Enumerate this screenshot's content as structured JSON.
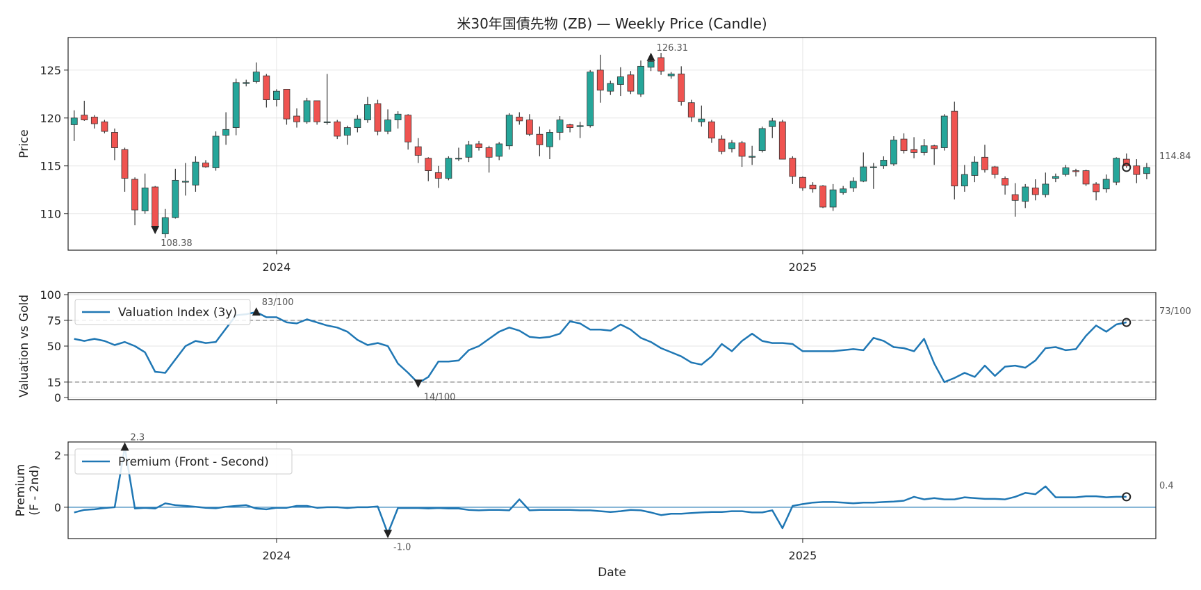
{
  "chart_data": [
    {
      "type": "candlestick",
      "title": "米30年国債先物 (ZB) — Weekly Price (Candle)",
      "ylabel": "Price",
      "ylim": [
        106.2,
        128.4
      ],
      "yticks": [
        110,
        115,
        120,
        125
      ],
      "xticks": [
        {
          "label": "2024",
          "week": 20
        },
        {
          "label": "2025",
          "week": 72
        }
      ],
      "grid": true,
      "up_color": "#26a69a",
      "down_color": "#ef5350",
      "ohlc": [
        [
          119.3,
          120.8,
          117.6,
          120.0
        ],
        [
          120.3,
          121.8,
          119.7,
          119.8
        ],
        [
          120.1,
          120.3,
          118.9,
          119.4
        ],
        [
          119.6,
          119.8,
          118.4,
          118.6
        ],
        [
          118.5,
          118.9,
          115.6,
          116.9
        ],
        [
          116.7,
          116.9,
          112.3,
          113.7
        ],
        [
          113.6,
          113.8,
          108.8,
          110.4
        ],
        [
          110.3,
          114.2,
          110.0,
          112.7
        ],
        [
          112.8,
          112.9,
          108.2,
          108.6
        ],
        [
          107.9,
          110.5,
          107.5,
          109.6
        ],
        [
          109.6,
          114.7,
          109.5,
          113.5
        ],
        [
          113.3,
          115.3,
          111.9,
          113.4
        ],
        [
          113.0,
          116.0,
          112.3,
          115.4
        ],
        [
          115.3,
          115.6,
          114.8,
          114.9
        ],
        [
          114.8,
          118.6,
          114.5,
          118.1
        ],
        [
          118.2,
          120.6,
          117.2,
          118.8
        ],
        [
          119.0,
          124.1,
          118.2,
          123.7
        ],
        [
          123.6,
          124.0,
          123.3,
          123.7
        ],
        [
          123.8,
          125.8,
          123.6,
          124.8
        ],
        [
          124.4,
          124.6,
          121.1,
          121.9
        ],
        [
          121.9,
          123.0,
          121.2,
          122.8
        ],
        [
          123.0,
          123.0,
          119.3,
          119.9
        ],
        [
          120.2,
          121.0,
          119.0,
          119.6
        ],
        [
          119.6,
          122.1,
          119.4,
          121.8
        ],
        [
          121.8,
          121.8,
          119.3,
          119.6
        ],
        [
          119.6,
          124.6,
          119.3,
          119.6
        ],
        [
          119.6,
          119.8,
          117.8,
          118.1
        ],
        [
          118.2,
          119.2,
          117.2,
          119.0
        ],
        [
          119.0,
          120.3,
          118.5,
          119.9
        ],
        [
          119.8,
          122.2,
          119.5,
          121.4
        ],
        [
          121.5,
          121.9,
          118.2,
          118.6
        ],
        [
          118.6,
          120.9,
          118.3,
          119.8
        ],
        [
          119.8,
          120.7,
          118.9,
          120.4
        ],
        [
          120.3,
          120.4,
          116.7,
          117.5
        ],
        [
          117.0,
          117.9,
          115.3,
          116.1
        ],
        [
          115.8,
          115.9,
          113.4,
          114.5
        ],
        [
          114.3,
          115.0,
          112.7,
          113.7
        ],
        [
          113.7,
          116.0,
          113.5,
          115.8
        ],
        [
          115.8,
          116.9,
          115.5,
          115.8
        ],
        [
          115.9,
          117.6,
          115.4,
          117.2
        ],
        [
          117.3,
          117.6,
          116.6,
          116.9
        ],
        [
          116.9,
          117.1,
          114.3,
          115.9
        ],
        [
          116.0,
          117.5,
          115.6,
          117.3
        ],
        [
          117.1,
          120.5,
          116.7,
          120.3
        ],
        [
          120.1,
          120.6,
          119.3,
          119.7
        ],
        [
          119.8,
          120.4,
          118.1,
          118.3
        ],
        [
          118.3,
          119.1,
          116.0,
          117.2
        ],
        [
          117.0,
          118.8,
          115.7,
          118.5
        ],
        [
          118.5,
          120.2,
          117.7,
          119.8
        ],
        [
          119.3,
          119.4,
          118.5,
          119.0
        ],
        [
          119.1,
          119.6,
          117.9,
          119.2
        ],
        [
          119.2,
          125.0,
          119.0,
          124.8
        ],
        [
          125.0,
          126.6,
          121.6,
          122.9
        ],
        [
          122.8,
          123.9,
          122.4,
          123.6
        ],
        [
          123.5,
          125.3,
          122.3,
          124.3
        ],
        [
          124.5,
          124.9,
          122.5,
          122.8
        ],
        [
          122.5,
          126.0,
          122.2,
          125.4
        ],
        [
          125.3,
          126.6,
          124.9,
          125.9
        ],
        [
          126.3,
          126.8,
          124.5,
          124.9
        ],
        [
          124.4,
          124.8,
          124.1,
          124.6
        ],
        [
          124.6,
          125.4,
          121.3,
          121.7
        ],
        [
          121.6,
          121.9,
          119.6,
          120.1
        ],
        [
          119.6,
          121.3,
          119.1,
          119.9
        ],
        [
          119.6,
          119.8,
          117.4,
          117.9
        ],
        [
          117.8,
          118.2,
          116.2,
          116.5
        ],
        [
          116.8,
          117.7,
          116.4,
          117.4
        ],
        [
          117.4,
          117.6,
          114.9,
          116.0
        ],
        [
          115.9,
          117.1,
          115.1,
          116.0
        ],
        [
          116.6,
          119.1,
          116.4,
          118.9
        ],
        [
          119.1,
          120.0,
          117.9,
          119.7
        ],
        [
          119.6,
          119.8,
          115.7,
          115.7
        ],
        [
          115.8,
          116.0,
          113.1,
          113.9
        ],
        [
          113.8,
          113.9,
          112.4,
          112.7
        ],
        [
          113.0,
          113.3,
          112.2,
          112.6
        ],
        [
          112.9,
          113.0,
          110.6,
          110.7
        ],
        [
          110.7,
          113.1,
          110.3,
          112.5
        ],
        [
          112.2,
          112.9,
          112.0,
          112.6
        ],
        [
          112.7,
          113.8,
          112.3,
          113.4
        ],
        [
          113.4,
          116.4,
          113.3,
          114.9
        ],
        [
          114.9,
          115.3,
          112.6,
          114.9
        ],
        [
          115.0,
          116.0,
          114.7,
          115.6
        ],
        [
          115.2,
          118.1,
          115.0,
          117.7
        ],
        [
          117.8,
          118.4,
          116.3,
          116.6
        ],
        [
          116.7,
          118.0,
          115.8,
          116.4
        ],
        [
          116.4,
          117.8,
          116.1,
          117.1
        ],
        [
          117.1,
          117.2,
          115.1,
          116.8
        ],
        [
          116.9,
          120.4,
          116.6,
          120.2
        ],
        [
          120.7,
          121.7,
          111.5,
          112.9
        ],
        [
          112.9,
          115.1,
          112.3,
          114.1
        ],
        [
          114.0,
          116.0,
          113.3,
          115.4
        ],
        [
          115.9,
          117.2,
          114.3,
          114.6
        ],
        [
          114.9,
          115.0,
          113.7,
          114.1
        ],
        [
          113.7,
          113.9,
          112.0,
          113.0
        ],
        [
          112.0,
          113.2,
          109.7,
          111.4
        ],
        [
          111.3,
          113.1,
          110.6,
          112.8
        ],
        [
          112.7,
          113.6,
          111.4,
          112.0
        ],
        [
          112.0,
          114.3,
          111.7,
          113.1
        ],
        [
          113.7,
          114.2,
          113.3,
          113.9
        ],
        [
          114.1,
          115.1,
          113.9,
          114.8
        ],
        [
          114.5,
          114.7,
          113.9,
          114.4
        ],
        [
          114.5,
          114.6,
          112.9,
          113.1
        ],
        [
          113.1,
          113.3,
          111.4,
          112.3
        ],
        [
          112.6,
          114.1,
          112.2,
          113.6
        ],
        [
          113.3,
          115.9,
          113.0,
          115.8
        ],
        [
          115.7,
          116.3,
          114.8,
          115.0
        ],
        [
          115.0,
          115.7,
          113.2,
          114.1
        ],
        [
          114.2,
          115.3,
          113.6,
          114.84
        ]
      ],
      "annotations": [
        {
          "label": "108.38",
          "week": 8,
          "value": 108.38,
          "marker": "down-triangle"
        },
        {
          "label": "126.31",
          "week": 57,
          "value": 126.31,
          "marker": "up-triangle"
        },
        {
          "label": "114.84",
          "week": 104,
          "value": 114.84,
          "marker": "circle"
        }
      ]
    },
    {
      "type": "line",
      "ylabel": "Valuation vs Gold",
      "ylim": [
        -2,
        102
      ],
      "yticks": [
        0,
        15,
        50,
        75,
        100
      ],
      "hlines": [
        15,
        75
      ],
      "legend": {
        "placement": "top-left",
        "label": "Valuation Index (3y)"
      },
      "series": [
        {
          "name": "Valuation Index (3y)",
          "color": "#1f77b4",
          "values": [
            57,
            55,
            57,
            55,
            51,
            54,
            50,
            44,
            25,
            24,
            37,
            50,
            55,
            53,
            54,
            67,
            80,
            81,
            83,
            78,
            78,
            73,
            72,
            76,
            73,
            70,
            68,
            64,
            56,
            51,
            53,
            50,
            33,
            24,
            14,
            20,
            35,
            35,
            36,
            46,
            50,
            57,
            64,
            68,
            65,
            59,
            58,
            59,
            62,
            74,
            72,
            66,
            66,
            65,
            71,
            66,
            58,
            54,
            48,
            44,
            40,
            34,
            32,
            40,
            52,
            45,
            55,
            62,
            55,
            53,
            53,
            52,
            45,
            45,
            45,
            45,
            46,
            47,
            46,
            58,
            55,
            49,
            48,
            45,
            57,
            33,
            15,
            19,
            24,
            20,
            31,
            21,
            30,
            31,
            29,
            36,
            48,
            49,
            46,
            47,
            60,
            70,
            64,
            71,
            73
          ]
        }
      ],
      "annotations": [
        {
          "label": "83/100",
          "week": 18,
          "value": 83,
          "marker": "up-triangle"
        },
        {
          "label": "14/100",
          "week": 34,
          "value": 14,
          "marker": "down-triangle"
        },
        {
          "label": "73/100",
          "week": 104,
          "value": 73,
          "marker": "circle"
        }
      ]
    },
    {
      "type": "line",
      "ylabel": "Premium\n(F - 2nd)",
      "xlabel": "Date",
      "ylim": [
        -1.2,
        2.5
      ],
      "yticks": [
        0,
        2
      ],
      "hlines": [
        0
      ],
      "legend": {
        "placement": "top-left",
        "label": "Premium (Front - Second)"
      },
      "series": [
        {
          "name": "Premium (Front - Second)",
          "color": "#1f77b4",
          "values": [
            -0.2,
            -0.1,
            -0.08,
            -0.03,
            0.0,
            2.3,
            -0.05,
            -0.02,
            -0.05,
            0.15,
            0.08,
            0.05,
            0.02,
            -0.02,
            -0.04,
            0.02,
            0.05,
            0.08,
            -0.05,
            -0.08,
            -0.02,
            -0.02,
            0.05,
            0.05,
            -0.02,
            0.0,
            0.0,
            -0.03,
            0.0,
            0.0,
            0.03,
            -1.0,
            -0.03,
            -0.03,
            -0.03,
            -0.05,
            -0.03,
            -0.05,
            -0.05,
            -0.1,
            -0.12,
            -0.1,
            -0.1,
            -0.12,
            0.3,
            -0.12,
            -0.1,
            -0.1,
            -0.1,
            -0.1,
            -0.12,
            -0.12,
            -0.15,
            -0.18,
            -0.15,
            -0.1,
            -0.12,
            -0.2,
            -0.3,
            -0.25,
            -0.25,
            -0.22,
            -0.2,
            -0.18,
            -0.18,
            -0.15,
            -0.15,
            -0.2,
            -0.2,
            -0.12,
            -0.8,
            0.05,
            0.12,
            0.18,
            0.2,
            0.2,
            0.18,
            0.15,
            0.18,
            0.18,
            0.2,
            0.22,
            0.25,
            0.4,
            0.3,
            0.35,
            0.3,
            0.3,
            0.38,
            0.35,
            0.32,
            0.32,
            0.3,
            0.4,
            0.55,
            0.5,
            0.8,
            0.38,
            0.38,
            0.38,
            0.42,
            0.42,
            0.38,
            0.4,
            0.4
          ]
        }
      ],
      "xticks": [
        {
          "label": "2024",
          "week": 20
        },
        {
          "label": "2025",
          "week": 72
        }
      ],
      "annotations": [
        {
          "label": "2.3",
          "week": 5,
          "value": 2.3,
          "marker": "up-triangle"
        },
        {
          "label": "-1.0",
          "week": 31,
          "value": -1.0,
          "marker": "down-triangle"
        },
        {
          "label": "0.4",
          "week": 104,
          "value": 0.4,
          "marker": "circle"
        }
      ]
    }
  ]
}
